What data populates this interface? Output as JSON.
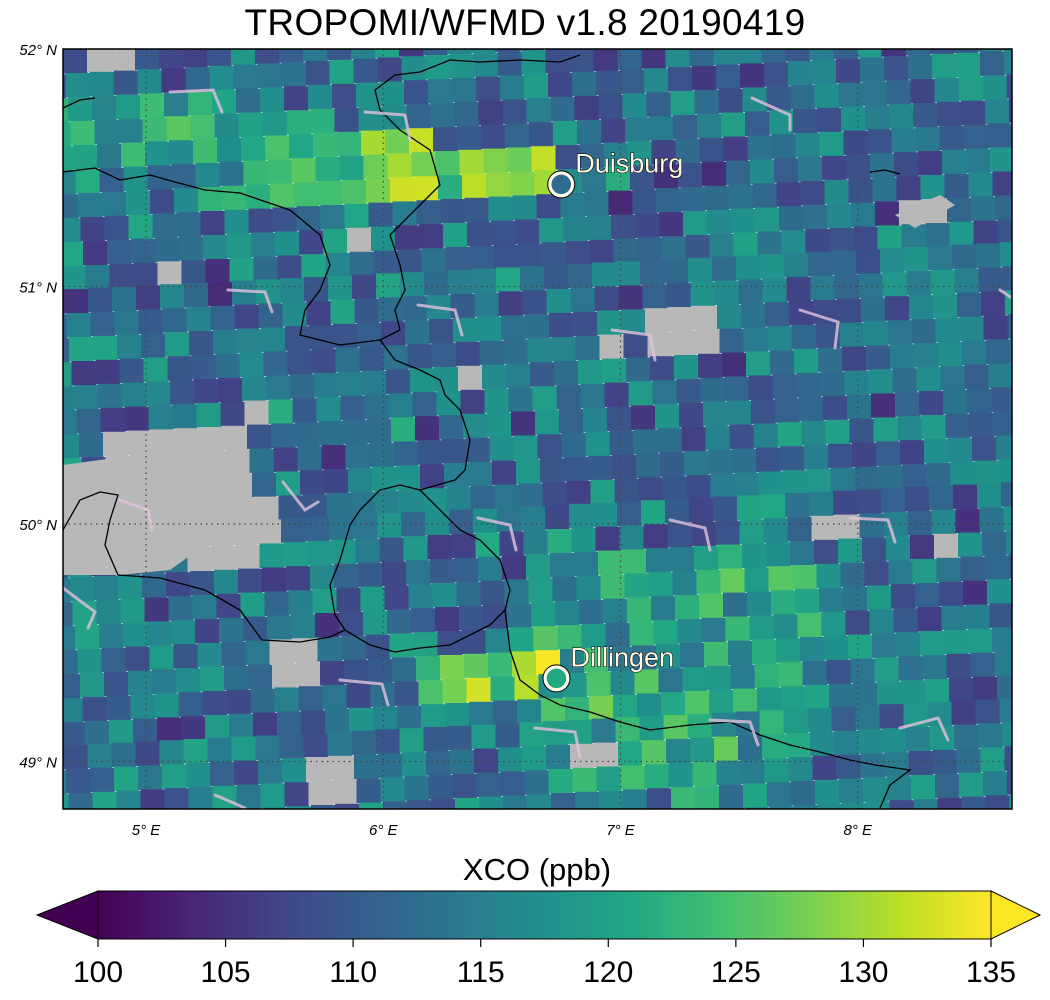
{
  "title": "TROPOMI/WFMD v1.8  20190419",
  "map": {
    "lat_range": [
      48.8,
      52.0
    ],
    "lon_range": [
      4.65,
      8.65
    ],
    "lat_ticks": [
      {
        "value": 52,
        "label": "52° N"
      },
      {
        "value": 51,
        "label": "51° N"
      },
      {
        "value": 50,
        "label": "50° N"
      },
      {
        "value": 49,
        "label": "49° N"
      }
    ],
    "lon_ticks": [
      {
        "value": 5,
        "label": "5° E"
      },
      {
        "value": 6,
        "label": "6° E"
      },
      {
        "value": 7,
        "label": "7° E"
      },
      {
        "value": 8,
        "label": "8° E"
      }
    ],
    "no_data_color": "#b8b8b8",
    "gridlines": "dotted",
    "cities": [
      {
        "name": "Duisburg",
        "lat": 51.43,
        "lon": 6.75,
        "xco": 112
      },
      {
        "name": "Dillingen",
        "lat": 49.35,
        "lon": 6.73,
        "xco": 121
      }
    ],
    "plumes": [
      {
        "near": "Duisburg",
        "xco_max": 132
      },
      {
        "near": "Dillingen",
        "xco_max": 133
      }
    ],
    "background_xco_typical": 112
  },
  "colorbar": {
    "label": "XCO (ppb)",
    "min": 100,
    "max": 135,
    "ticks": [
      "100",
      "105",
      "110",
      "115",
      "120",
      "125",
      "130",
      "135"
    ],
    "extend": "both",
    "colormap": "viridis"
  }
}
